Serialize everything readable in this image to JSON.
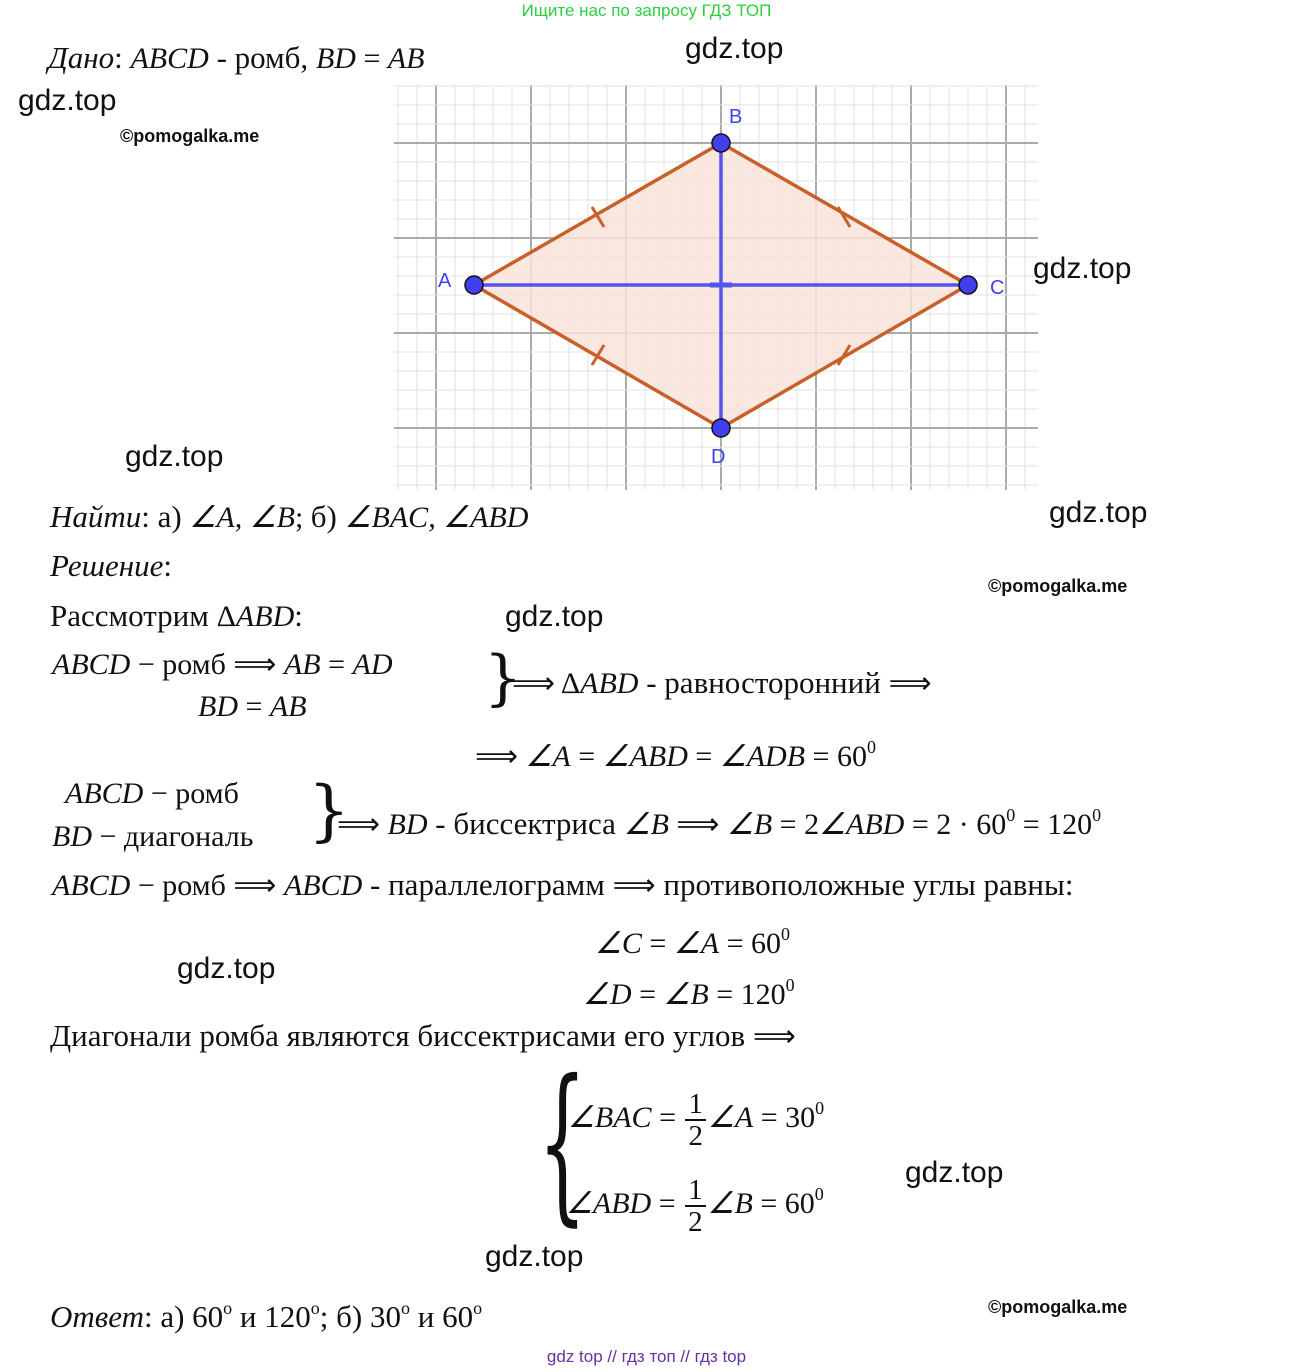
{
  "top_note": "Ищите нас по запросу ГДЗ ТОП",
  "footer": "gdz top  //  гдз топ  //  гдз top",
  "watermarks": [
    "gdz.top",
    "gdz.top",
    "gdz.top",
    "gdz.top",
    "gdz.top",
    "gdz.top",
    "gdz.top",
    "gdz.top",
    "gdz.top"
  ],
  "copyrights": [
    "©pomogalka.me",
    "©pomogalka.me",
    "©pomogalka.me"
  ],
  "figure": {
    "labels": {
      "A": "A",
      "B": "B",
      "C": "C",
      "D": "D"
    },
    "colors": {
      "sides": "#c8602a",
      "fill": "#f9e3da",
      "diagonals": "#5555ee",
      "points": "#4040ee",
      "grid": "#cfcfcf"
    }
  },
  "lines": [
    {
      "id": "given",
      "segs": [
        [
          "i",
          "Дано"
        ],
        [
          "r",
          ": "
        ],
        [
          "m",
          "ABCD"
        ],
        [
          "r",
          " - ромб, "
        ],
        [
          "m",
          "BD"
        ],
        [
          "n",
          " = "
        ],
        [
          "m",
          "AB"
        ]
      ]
    },
    {
      "id": "find",
      "segs": [
        [
          "i",
          "Найти"
        ],
        [
          "r",
          ": а) "
        ],
        [
          "m",
          "∠A, ∠B"
        ],
        [
          "n",
          ";  "
        ],
        [
          "r",
          "б) "
        ],
        [
          "m",
          "∠BAC, ∠ABD"
        ]
      ]
    },
    {
      "id": "solution",
      "segs": [
        [
          "i",
          "Решение"
        ],
        [
          "r",
          ":"
        ]
      ]
    },
    {
      "id": "consider",
      "segs": [
        [
          "r",
          "Рассмотрим "
        ],
        [
          "n",
          "Δ"
        ],
        [
          "m",
          "ABD"
        ],
        [
          "r",
          ":"
        ]
      ]
    },
    {
      "id": "s1a",
      "segs": [
        [
          "m",
          "ABCD"
        ],
        [
          "n",
          "  −  "
        ],
        [
          "n",
          "ромб ⟹ "
        ],
        [
          "m",
          "AB"
        ],
        [
          "n",
          " = "
        ],
        [
          "m",
          "AD"
        ]
      ]
    },
    {
      "id": "s1b",
      "segs": [
        [
          "m",
          "BD"
        ],
        [
          "n",
          " = "
        ],
        [
          "m",
          "AB"
        ]
      ]
    },
    {
      "id": "s1c",
      "segs": [
        [
          "n",
          "⟹ Δ"
        ],
        [
          "m",
          "ABD"
        ],
        [
          "r",
          " - равносторонний "
        ],
        [
          "n",
          "⟹"
        ]
      ]
    },
    {
      "id": "s2",
      "segs": [
        [
          "n",
          "⟹ "
        ],
        [
          "m",
          "∠A"
        ],
        [
          "n",
          " = "
        ],
        [
          "m",
          "∠ABD"
        ],
        [
          "n",
          " = "
        ],
        [
          "m",
          "∠ADB"
        ],
        [
          "n",
          " = 60"
        ],
        [
          "sup",
          "0"
        ]
      ]
    },
    {
      "id": "s3a",
      "segs": [
        [
          "m",
          "ABCD"
        ],
        [
          "n",
          "  −  ромб"
        ]
      ]
    },
    {
      "id": "s3b",
      "segs": [
        [
          "m",
          "BD"
        ],
        [
          "n",
          " − диагональ"
        ]
      ]
    },
    {
      "id": "s3c",
      "segs": [
        [
          "n",
          "⟹ "
        ],
        [
          "m",
          "BD"
        ],
        [
          "r",
          " - биссектриса "
        ],
        [
          "m",
          "∠B"
        ],
        [
          "n",
          " ⟹ "
        ],
        [
          "m",
          "∠B"
        ],
        [
          "n",
          " = 2"
        ],
        [
          "m",
          "∠ABD"
        ],
        [
          "n",
          " = 2 · 60"
        ],
        [
          "sup",
          "0"
        ],
        [
          "n",
          " = 120"
        ],
        [
          "sup",
          "0"
        ]
      ]
    },
    {
      "id": "s4",
      "segs": [
        [
          "m",
          "ABCD"
        ],
        [
          "n",
          "  −  ромб ⟹ "
        ],
        [
          "m",
          "ABCD"
        ],
        [
          "r",
          " - параллелограмм "
        ],
        [
          "n",
          "⟹"
        ],
        [
          "r",
          " противоположные углы равны:"
        ]
      ]
    },
    {
      "id": "s5",
      "segs": [
        [
          "m",
          "∠C"
        ],
        [
          "n",
          " = "
        ],
        [
          "m",
          "∠A"
        ],
        [
          "n",
          " = 60"
        ],
        [
          "sup",
          "0"
        ]
      ]
    },
    {
      "id": "s6",
      "segs": [
        [
          "m",
          "∠D"
        ],
        [
          "n",
          " = "
        ],
        [
          "m",
          "∠B"
        ],
        [
          "n",
          " = 120"
        ],
        [
          "sup",
          "0"
        ]
      ]
    },
    {
      "id": "s7",
      "segs": [
        [
          "r",
          "Диагонали ромба являются биссектрисами его углов "
        ],
        [
          "n",
          "⟹"
        ]
      ]
    },
    {
      "id": "s8",
      "segs": [
        [
          "m",
          "∠BAC"
        ],
        [
          "n",
          " = "
        ],
        [
          "frac",
          "1",
          "2"
        ],
        [
          "m",
          "∠A"
        ],
        [
          "n",
          " = 30"
        ],
        [
          "sup",
          "0"
        ]
      ]
    },
    {
      "id": "s9",
      "segs": [
        [
          "m",
          "∠ABD"
        ],
        [
          "n",
          " = "
        ],
        [
          "frac",
          "1",
          "2"
        ],
        [
          "m",
          "∠B"
        ],
        [
          "n",
          " = 60"
        ],
        [
          "sup",
          "0"
        ]
      ]
    },
    {
      "id": "answer",
      "segs": [
        [
          "i",
          "Ответ"
        ],
        [
          "r",
          ":  а) 60"
        ],
        [
          "sup",
          "o"
        ],
        [
          "r",
          " и 120"
        ],
        [
          "sup",
          "o"
        ],
        [
          "r",
          "; б) 30"
        ],
        [
          "sup",
          "o"
        ],
        [
          "r",
          " и 60"
        ],
        [
          "sup",
          "o"
        ]
      ]
    }
  ]
}
